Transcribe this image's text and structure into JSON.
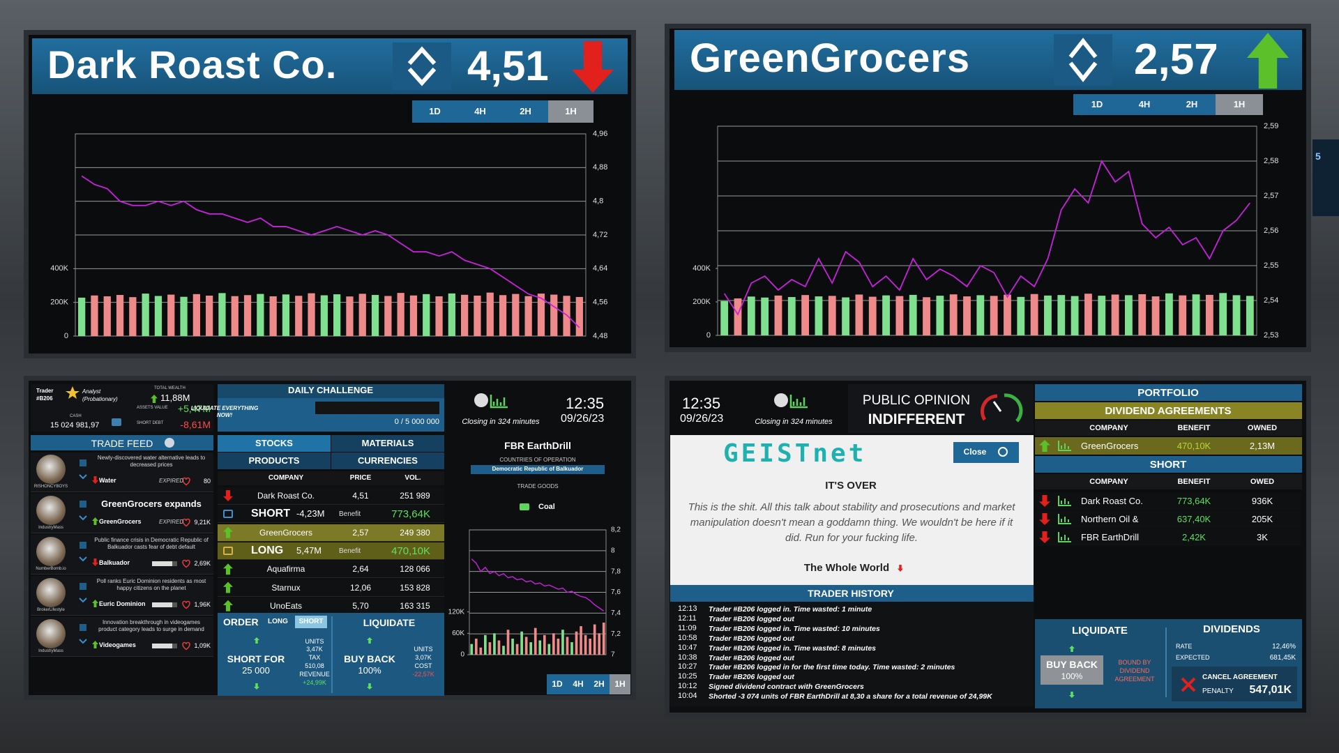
{
  "chart_data": [
    {
      "type": "line",
      "title": "Dark Roast Co.",
      "price": "4,51",
      "trend": "down",
      "timeframes": [
        "1D",
        "4H",
        "2H",
        "1H"
      ],
      "active_timeframe": "1H",
      "series": [
        {
          "color": "#c822dc",
          "values": [
            4.86,
            4.84,
            4.83,
            4.8,
            4.79,
            4.79,
            4.8,
            4.79,
            4.8,
            4.78,
            4.77,
            4.77,
            4.76,
            4.75,
            4.76,
            4.74,
            4.74,
            4.73,
            4.72,
            4.73,
            4.74,
            4.73,
            4.72,
            4.73,
            4.72,
            4.7,
            4.68,
            4.68,
            4.67,
            4.68,
            4.66,
            4.65,
            4.64,
            4.62,
            4.6,
            4.58,
            4.57,
            4.55,
            4.53,
            4.5
          ]
        },
        {
          "type": "bar",
          "axis": "y2",
          "up_color": "#7fe08f",
          "down_color": "#ef8a8a",
          "values": [
            228000,
            241000,
            236000,
            244000,
            231000,
            252000,
            238000,
            246000,
            233000,
            249000,
            240000,
            255000,
            237000,
            243000,
            250000,
            236000,
            247000,
            239000,
            254000,
            242000,
            248000,
            235000,
            251000,
            244000,
            238000,
            256000,
            241000,
            249000,
            236000,
            253000,
            245000,
            240000,
            258000,
            243000,
            250000,
            237000,
            252000,
            246000,
            239000,
            232000
          ]
        }
      ],
      "ylim": [
        4.48,
        4.96
      ],
      "yticks": [
        {
          "value": 4.48,
          "label": "4,48"
        },
        {
          "value": 4.56,
          "label": "4,56"
        },
        {
          "value": 4.64,
          "label": "4,64"
        },
        {
          "value": 4.72,
          "label": "4,72"
        },
        {
          "value": 4.8,
          "label": "4,8"
        },
        {
          "value": 4.88,
          "label": "4,88"
        },
        {
          "value": 4.96,
          "label": "4,96"
        }
      ],
      "y2lim": [
        0,
        1200000
      ],
      "y2ticks": [
        0,
        {
          "value": 200000,
          "label": "200K"
        },
        {
          "value": 400000,
          "label": "400K"
        }
      ],
      "grid": true
    },
    {
      "type": "line",
      "title": "GreenGrocers",
      "price": "2,57",
      "trend": "up",
      "timeframes": [
        "1D",
        "4H",
        "2H",
        "1H"
      ],
      "active_timeframe": "1H",
      "series": [
        {
          "color": "#c822dc",
          "values": [
            2.542,
            2.536,
            2.545,
            2.547,
            2.543,
            2.546,
            2.544,
            2.552,
            2.545,
            2.554,
            2.551,
            2.544,
            2.547,
            2.543,
            2.552,
            2.546,
            2.549,
            2.547,
            2.544,
            2.55,
            2.548,
            2.541,
            2.547,
            2.544,
            2.552,
            2.566,
            2.572,
            2.568,
            2.58,
            2.574,
            2.577,
            2.562,
            2.558,
            2.561,
            2.556,
            2.558,
            2.552,
            2.56,
            2.563,
            2.568
          ]
        },
        {
          "type": "bar",
          "axis": "y2",
          "up_color": "#7fe08f",
          "down_color": "#ef8a8a",
          "values": [
            205000,
            221000,
            232000,
            226000,
            238000,
            229000,
            241000,
            233000,
            236000,
            227000,
            244000,
            231000,
            239000,
            235000,
            242000,
            228000,
            237000,
            245000,
            233000,
            240000,
            236000,
            243000,
            230000,
            247000,
            238000,
            241000,
            235000,
            249000,
            237000,
            244000,
            240000,
            246000,
            233000,
            251000,
            239000,
            245000,
            242000,
            253000,
            240000,
            236000
          ]
        }
      ],
      "ylim": [
        2.53,
        2.59
      ],
      "yticks": [
        {
          "value": 2.53,
          "label": "2,53"
        },
        {
          "value": 2.54,
          "label": "2,54"
        },
        {
          "value": 2.55,
          "label": "2,55"
        },
        {
          "value": 2.56,
          "label": "2,56"
        },
        {
          "value": 2.57,
          "label": "2,57"
        },
        {
          "value": 2.58,
          "label": "2,58"
        },
        {
          "value": 2.59,
          "label": "2,59"
        }
      ],
      "y2lim": [
        0,
        1250000
      ],
      "y2ticks": [
        0,
        {
          "value": 200000,
          "label": "200K"
        },
        {
          "value": 400000,
          "label": "400K"
        }
      ],
      "grid": true
    },
    {
      "type": "line",
      "title": "FBR EarthDrill",
      "countries_label": "COUNTRIES OF OPERATION",
      "country": "Democratic Republic of Balkuador",
      "goods_label": "TRADE GOODS",
      "goods": "Coal",
      "timeframes": [
        "1D",
        "4H",
        "2H",
        "1H"
      ],
      "active_timeframe": "1H",
      "series": [
        {
          "color": "#c822dc",
          "values": [
            7.92,
            7.88,
            7.8,
            7.84,
            7.78,
            7.8,
            7.76,
            7.78,
            7.74,
            7.75,
            7.72,
            7.73,
            7.7,
            7.71,
            7.68,
            7.69,
            7.66,
            7.67,
            7.65,
            7.63,
            7.64,
            7.6,
            7.61,
            7.58,
            7.56,
            7.55,
            7.52,
            7.48,
            7.45,
            7.42
          ]
        },
        {
          "type": "bar",
          "axis": "y2",
          "up_color": "#7fe08f",
          "down_color": "#ef8a8a",
          "values": [
            30000,
            45000,
            20000,
            55000,
            35000,
            60000,
            40000,
            25000,
            70000,
            45000,
            30000,
            65000,
            50000,
            35000,
            75000,
            40000,
            55000,
            30000,
            60000,
            45000,
            70000,
            50000,
            35000,
            65000,
            80000,
            55000,
            45000,
            85000,
            60000,
            90000
          ]
        }
      ],
      "ylim": [
        7,
        8.2
      ],
      "yticks": [
        7,
        {
          "value": 7.2,
          "label": "7,2"
        },
        {
          "value": 7.4,
          "label": "7,4"
        },
        {
          "value": 7.6,
          "label": "7,6"
        },
        {
          "value": 7.8,
          "label": "7,8"
        },
        8,
        {
          "value": 8.2,
          "label": "8,2"
        }
      ],
      "y2lim": [
        0,
        350000
      ],
      "y2ticks": [
        0,
        {
          "value": 60000,
          "label": "60K"
        },
        {
          "value": 120000,
          "label": "120K"
        }
      ],
      "grid": true
    }
  ],
  "trader": {
    "label": "Trader",
    "id": "#B206",
    "rank": "Analyst (Probationary)",
    "total_wealth_label": "TOTAL WEALTH",
    "total_wealth": "11,88M",
    "assets_label": "ASSETS VALUE",
    "assets": "+5,47M",
    "cash_label": "CASH",
    "cash": "15 024 981,97",
    "debt_label": "SHORT DEBT",
    "debt": "-8,61M"
  },
  "trade_feed": {
    "title": "TRADE FEED",
    "items": [
      {
        "headline": "Newly-discovered water alternative leads to decreased prices",
        "tag": "Water",
        "trend": "down",
        "status": "EXPIRED",
        "likes": "80",
        "author": "RISHONCYBOYS"
      },
      {
        "headline": "GreenGrocers expands",
        "tag": "GreenGrocers",
        "trend": "up",
        "status": "EXPIRED",
        "likes": "9,21K",
        "author": "IndustryMass"
      },
      {
        "headline": "Public finance crisis in Democratic Republic of Balkuador casts fear of debt default",
        "tag": "Balkuador",
        "trend": "down",
        "likes": "2,69K",
        "author": "NumberBomb.io"
      },
      {
        "headline": "Poll ranks Euric Dominion residents as most happy citizens on the planet",
        "tag": "Euric Dominion",
        "trend": "up",
        "likes": "1,96K",
        "author": "BrokerLifestyle"
      },
      {
        "headline": "Innovation breakthrough in videogames product category leads to surge in demand",
        "tag": "Videogames",
        "trend": "up",
        "likes": "1,09K",
        "author": "IndustryMass"
      }
    ]
  },
  "daily_challenge": {
    "title": "DAILY CHALLENGE",
    "task": "LIQUIDATE EVERYTHING NOW!",
    "progress": "0 / 5 000 000"
  },
  "market_tabs": {
    "tabs": [
      "STOCKS",
      "MATERIALS",
      "PRODUCTS",
      "CURRENCIES"
    ],
    "active": "STOCKS"
  },
  "stocks_table": {
    "headers": [
      "COMPANY",
      "PRICE",
      "VOL."
    ],
    "rows": [
      {
        "company": "Dark Roast Co.",
        "price": "4,51",
        "volume": "251 989",
        "trend": "down"
      },
      {
        "position": "SHORT",
        "amount": "-4,23M",
        "benefit_label": "Benefit",
        "benefit": "773,64K"
      },
      {
        "company": "GreenGrocers",
        "price": "2,57",
        "volume": "249 380",
        "trend": "up",
        "highlight": true
      },
      {
        "position": "LONG",
        "amount": "5,47M",
        "benefit_label": "Benefit",
        "benefit": "470,10K",
        "highlight": true
      },
      {
        "company": "Aquafirma",
        "price": "2,64",
        "volume": "128 066",
        "trend": "up"
      },
      {
        "company": "Starnux",
        "price": "12,06",
        "volume": "153 828",
        "trend": "up"
      },
      {
        "company": "UnoEats",
        "price": "5,70",
        "volume": "163 315",
        "trend": "up"
      }
    ]
  },
  "order": {
    "title": "ORDER",
    "long": "LONG",
    "short": "SHORT",
    "action": "SHORT FOR",
    "amount": "25 000",
    "units_label": "UNITS",
    "units": "3,47K",
    "tax_label": "TAX",
    "tax": "510,08",
    "revenue_label": "REVENUE",
    "revenue": "+24,99K"
  },
  "liquidate": {
    "title": "LIQUIDATE",
    "action": "BUY BACK",
    "amount": "100%",
    "units_label": "UNITS",
    "units": "3,07K",
    "cost_label": "COST",
    "cost": "-22,57K"
  },
  "clock": {
    "time": "12:35",
    "date": "09/26/23",
    "closing": "Closing in 324 minutes"
  },
  "public_opinion": {
    "label": "PUBLIC OPINION",
    "value": "INDIFFERENT"
  },
  "news": {
    "source": "GEISTnet",
    "close": "Close",
    "headline": "IT'S OVER",
    "body": "This is the shit. All this talk about stability and prosecutions and market manipulation doesn't mean a goddamn thing. We wouldn't be here if it did. Run for your fucking life.",
    "tag": "The Whole World"
  },
  "trader_history": {
    "title": "TRADER HISTORY",
    "rows": [
      {
        "time": "12:13",
        "text": "Trader #B206 logged in. Time wasted: 1 minute"
      },
      {
        "time": "12:11",
        "text": "Trader #B206 logged out"
      },
      {
        "time": "11:09",
        "text": "Trader #B206 logged in. Time wasted: 10 minutes"
      },
      {
        "time": "10:58",
        "text": "Trader #B206 logged out"
      },
      {
        "time": "10:47",
        "text": "Trader #B206 logged in. Time wasted: 8 minutes"
      },
      {
        "time": "10:38",
        "text": "Trader #B206 logged out"
      },
      {
        "time": "10:27",
        "text": "Trader #B206 logged in for the first time today. Time wasted: 2 minutes"
      },
      {
        "time": "10:25",
        "text": "Trader #B206 logged out"
      },
      {
        "time": "10:12",
        "text": "Signed dividend contract with GreenGrocers"
      },
      {
        "time": "10:04",
        "text": "Shorted -3 074 units of FBR EarthDrill at 8,30 a share for a total revenue of 24,99K"
      }
    ]
  },
  "portfolio": {
    "title": "PORTFOLIO",
    "dividend_title": "DIVIDEND AGREEMENTS",
    "dividend_headers": [
      "COMPANY",
      "BENEFIT",
      "OWNED"
    ],
    "dividend_rows": [
      [
        "GreenGrocers",
        "470,10K",
        "2,13M"
      ]
    ],
    "short_title": "SHORT",
    "short_headers": [
      "COMPANY",
      "BENEFIT",
      "OWED"
    ],
    "short_rows": [
      [
        "Dark Roast Co.",
        "773,64K",
        "936K"
      ],
      [
        "Northern Oil &",
        "637,40K",
        "205K"
      ],
      [
        "FBR EarthDrill",
        "2,42K",
        "3K"
      ]
    ]
  },
  "portfolio_liquidate": {
    "title": "LIQUIDATE",
    "action": "BUY BACK",
    "amount": "100%",
    "note": "BOUND BY DIVIDEND AGREEMENT"
  },
  "dividends": {
    "title": "DIVIDENDS",
    "rate_label": "RATE",
    "rate": "12,46%",
    "expected_label": "EXPECTED",
    "expected": "681,45K",
    "cancel": "CANCEL AGREEMENT",
    "penalty_label": "PENALTY",
    "penalty": "547,01K"
  },
  "edge_label": "5"
}
